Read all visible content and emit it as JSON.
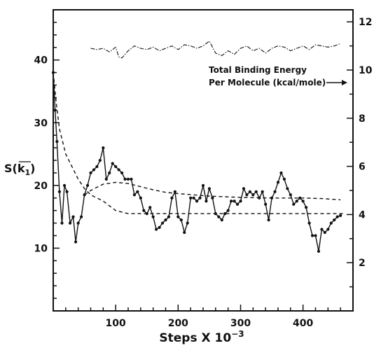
{
  "chart_data": {
    "type": "line",
    "xlabel_main": "Steps X 10",
    "xlabel_exp": "−3",
    "ylabel_left_main": "S(k",
    "ylabel_left_sub": "1",
    "ylabel_left_close": ")",
    "annotation_line1": "Total Binding Energy",
    "annotation_line2": "Per Molecule (kcal/mole)",
    "xlim": [
      0,
      480
    ],
    "ylim_left": [
      0,
      48
    ],
    "ylim_right": [
      0,
      12.5
    ],
    "x_ticks": [
      100,
      200,
      300,
      400
    ],
    "y_left_ticks": [
      10,
      20,
      30,
      40
    ],
    "y_right_ticks": [
      2,
      4,
      6,
      8,
      10,
      12
    ],
    "series": [
      {
        "axis": "left",
        "style": "solid-with-markers",
        "x": [
          0,
          3,
          6,
          10,
          14,
          18,
          22,
          27,
          32,
          36,
          40,
          45,
          50,
          55,
          60,
          65,
          70,
          75,
          80,
          85,
          90,
          95,
          100,
          105,
          110,
          115,
          120,
          125,
          130,
          135,
          140,
          145,
          150,
          155,
          160,
          165,
          170,
          175,
          180,
          185,
          190,
          195,
          200,
          205,
          210,
          215,
          220,
          225,
          230,
          235,
          240,
          245,
          250,
          255,
          260,
          265,
          270,
          275,
          280,
          285,
          290,
          295,
          300,
          305,
          310,
          315,
          320,
          325,
          330,
          335,
          340,
          345,
          350,
          355,
          360,
          365,
          370,
          375,
          380,
          385,
          390,
          395,
          400,
          405,
          410,
          415,
          420,
          425,
          430,
          435,
          440,
          445,
          450,
          455,
          460
        ],
        "y": [
          38,
          32,
          27,
          19,
          14,
          20,
          19,
          14,
          15,
          11,
          14,
          15,
          18.5,
          20,
          22,
          22.5,
          23,
          24,
          26,
          21,
          22,
          23.5,
          23,
          22.5,
          22,
          21,
          21,
          21,
          18.5,
          19,
          18,
          16,
          15.5,
          16.5,
          15,
          13,
          13.3,
          14,
          14.5,
          15,
          18,
          19,
          15,
          14.5,
          12.5,
          14,
          18,
          18,
          17.5,
          18,
          20,
          17.5,
          19.5,
          18,
          15.5,
          15,
          14.5,
          15.5,
          16,
          17.5,
          17.5,
          17,
          17.5,
          19.5,
          18.5,
          19,
          18.5,
          19,
          18,
          19,
          17,
          14.5,
          18,
          19,
          20.5,
          22,
          21,
          19.5,
          18.5,
          17,
          17.5,
          18,
          17.5,
          16.5,
          14,
          12,
          12,
          9.5,
          13,
          12.5,
          13,
          14,
          14.5,
          15,
          15.2
        ]
      },
      {
        "axis": "left",
        "style": "dashed",
        "x": [
          0,
          5,
          10,
          15,
          20,
          30,
          40,
          50,
          60,
          80,
          100,
          120,
          140,
          160,
          200,
          250,
          300,
          350,
          400,
          450,
          465
        ],
        "y": [
          38,
          33,
          29,
          27,
          25,
          23,
          21,
          19.5,
          18.5,
          17.5,
          16,
          15.5,
          15.5,
          15.5,
          15.5,
          15.5,
          15.5,
          15.5,
          15.5,
          15.5,
          15.5
        ]
      },
      {
        "axis": "left",
        "style": "dashed",
        "x": [
          50,
          60,
          80,
          100,
          120,
          140,
          160,
          180,
          200,
          250,
          300,
          350,
          400,
          430,
          460
        ],
        "y": [
          18.5,
          19.2,
          20.2,
          20.5,
          20.3,
          19.8,
          19.3,
          18.9,
          18.7,
          18.3,
          18.1,
          18,
          18,
          17.9,
          17.7
        ]
      },
      {
        "axis": "right",
        "style": "dash-dot",
        "x": [
          60,
          70,
          80,
          90,
          100,
          105,
          110,
          120,
          130,
          140,
          150,
          160,
          170,
          180,
          190,
          200,
          210,
          220,
          230,
          240,
          250,
          260,
          270,
          280,
          290,
          300,
          310,
          320,
          330,
          340,
          350,
          360,
          370,
          380,
          390,
          400,
          410,
          420,
          430,
          440,
          450,
          460
        ],
        "y": [
          10.9,
          10.85,
          10.9,
          10.75,
          10.95,
          10.55,
          10.5,
          10.8,
          11,
          10.9,
          10.85,
          10.95,
          10.8,
          10.9,
          11,
          10.85,
          11.05,
          11,
          10.9,
          11,
          11.2,
          10.7,
          10.6,
          10.8,
          10.65,
          10.9,
          11,
          10.8,
          10.9,
          10.7,
          10.9,
          11,
          10.95,
          10.8,
          10.9,
          11,
          10.85,
          11.05,
          11,
          10.95,
          11,
          11.1
        ]
      }
    ]
  },
  "colors": {
    "ink": "#111111",
    "background": "#ffffff"
  }
}
